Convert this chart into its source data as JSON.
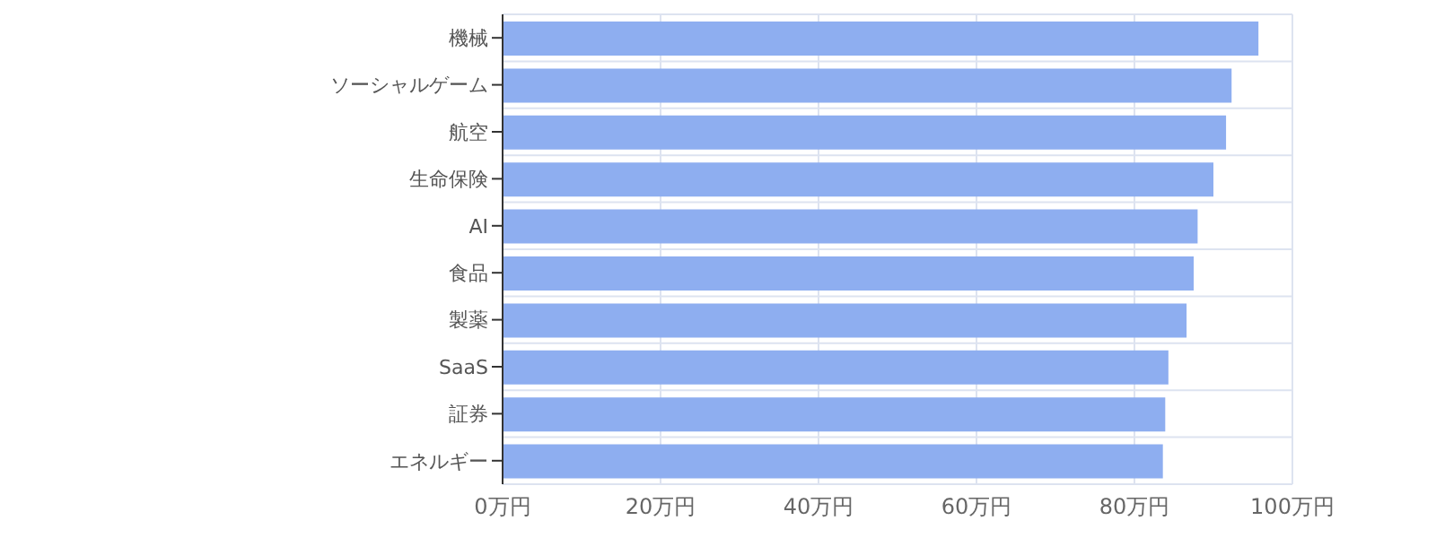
{
  "chart_data": {
    "type": "bar",
    "orientation": "horizontal",
    "categories": [
      "機械",
      "ソーシャルゲーム",
      "航空",
      "生命保険",
      "AI",
      "食品",
      "製薬",
      "SaaS",
      "証券",
      "エネルギー"
    ],
    "values": [
      95.7,
      92.3,
      91.6,
      90,
      88,
      87.5,
      86.6,
      84.3,
      83.9,
      83.6
    ],
    "color": "#8eaef0",
    "xlim": [
      0,
      100
    ],
    "xticks": [
      {
        "value": 0,
        "label": "0万円"
      },
      {
        "value": 20,
        "label": "20万円"
      },
      {
        "value": 40,
        "label": "40万円"
      },
      {
        "value": 60,
        "label": "60万円"
      },
      {
        "value": 80,
        "label": "80万円"
      },
      {
        "value": 100,
        "label": "100万円"
      }
    ],
    "grid": true
  }
}
